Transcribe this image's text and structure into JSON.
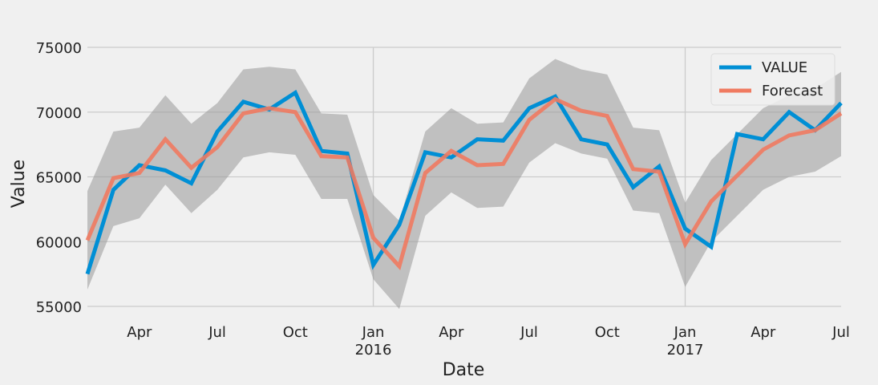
{
  "chart_data": {
    "type": "line",
    "xlabel": "Date",
    "ylabel": "Value",
    "ylim": [
      55000,
      75000
    ],
    "xlim": [
      "2015-02",
      "2017-07"
    ],
    "grid": true,
    "legend_position": "top-right",
    "y_ticks": [
      55000,
      60000,
      65000,
      70000,
      75000
    ],
    "x_ticks": [
      {
        "date": "2015-04",
        "label": "Apr",
        "sublabel": ""
      },
      {
        "date": "2015-07",
        "label": "Jul",
        "sublabel": ""
      },
      {
        "date": "2015-10",
        "label": "Oct",
        "sublabel": ""
      },
      {
        "date": "2016-01",
        "label": "Jan",
        "sublabel": "2016"
      },
      {
        "date": "2016-04",
        "label": "Apr",
        "sublabel": ""
      },
      {
        "date": "2016-07",
        "label": "Jul",
        "sublabel": ""
      },
      {
        "date": "2016-10",
        "label": "Oct",
        "sublabel": ""
      },
      {
        "date": "2017-01",
        "label": "Jan",
        "sublabel": "2017"
      },
      {
        "date": "2017-04",
        "label": "Apr",
        "sublabel": ""
      },
      {
        "date": "2017-07",
        "label": "Jul",
        "sublabel": ""
      }
    ],
    "major_grid_dates": [
      "2016-01",
      "2017-01"
    ],
    "x": [
      "2015-02",
      "2015-03",
      "2015-04",
      "2015-05",
      "2015-06",
      "2015-07",
      "2015-08",
      "2015-09",
      "2015-10",
      "2015-11",
      "2015-12",
      "2016-01",
      "2016-02",
      "2016-03",
      "2016-04",
      "2016-05",
      "2016-06",
      "2016-07",
      "2016-08",
      "2016-09",
      "2016-10",
      "2016-11",
      "2016-12",
      "2017-01",
      "2017-02",
      "2017-03",
      "2017-04",
      "2017-05",
      "2017-06",
      "2017-07"
    ],
    "series": [
      {
        "name": "VALUE",
        "color": "#008fd5",
        "values": [
          57500,
          64000,
          65900,
          65500,
          64500,
          68500,
          70800,
          70200,
          71500,
          67000,
          66800,
          58200,
          61300,
          66900,
          66500,
          67900,
          67800,
          70300,
          71200,
          67900,
          67500,
          64200,
          65800,
          61000,
          59600,
          68300,
          67900,
          70000,
          68600,
          70700
        ]
      },
      {
        "name": "Forecast",
        "color": "#f07a60",
        "values": [
          60100,
          64900,
          65300,
          67900,
          65700,
          67300,
          69900,
          70300,
          70000,
          66600,
          66500,
          60300,
          58100,
          65300,
          67000,
          65900,
          66000,
          69400,
          71000,
          70100,
          69700,
          65600,
          65400,
          59800,
          63100,
          65100,
          67100,
          68200,
          68600,
          69900
        ]
      }
    ],
    "confidence_band": {
      "color": "#999999",
      "lower": [
        56300,
        61200,
        61800,
        64400,
        62200,
        64000,
        66500,
        66900,
        66700,
        63300,
        63300,
        57100,
        54800,
        62000,
        63800,
        62600,
        62700,
        66100,
        67600,
        66800,
        66400,
        62400,
        62200,
        56500,
        60000,
        62000,
        64000,
        65000,
        65400,
        66600
      ],
      "upper": [
        63900,
        68500,
        68800,
        71300,
        69100,
        70700,
        73300,
        73500,
        73300,
        69900,
        69800,
        63600,
        61600,
        68500,
        70300,
        69100,
        69200,
        72600,
        74100,
        73300,
        72900,
        68800,
        68600,
        63000,
        66300,
        68300,
        70300,
        71300,
        71800,
        73100
      ]
    }
  }
}
